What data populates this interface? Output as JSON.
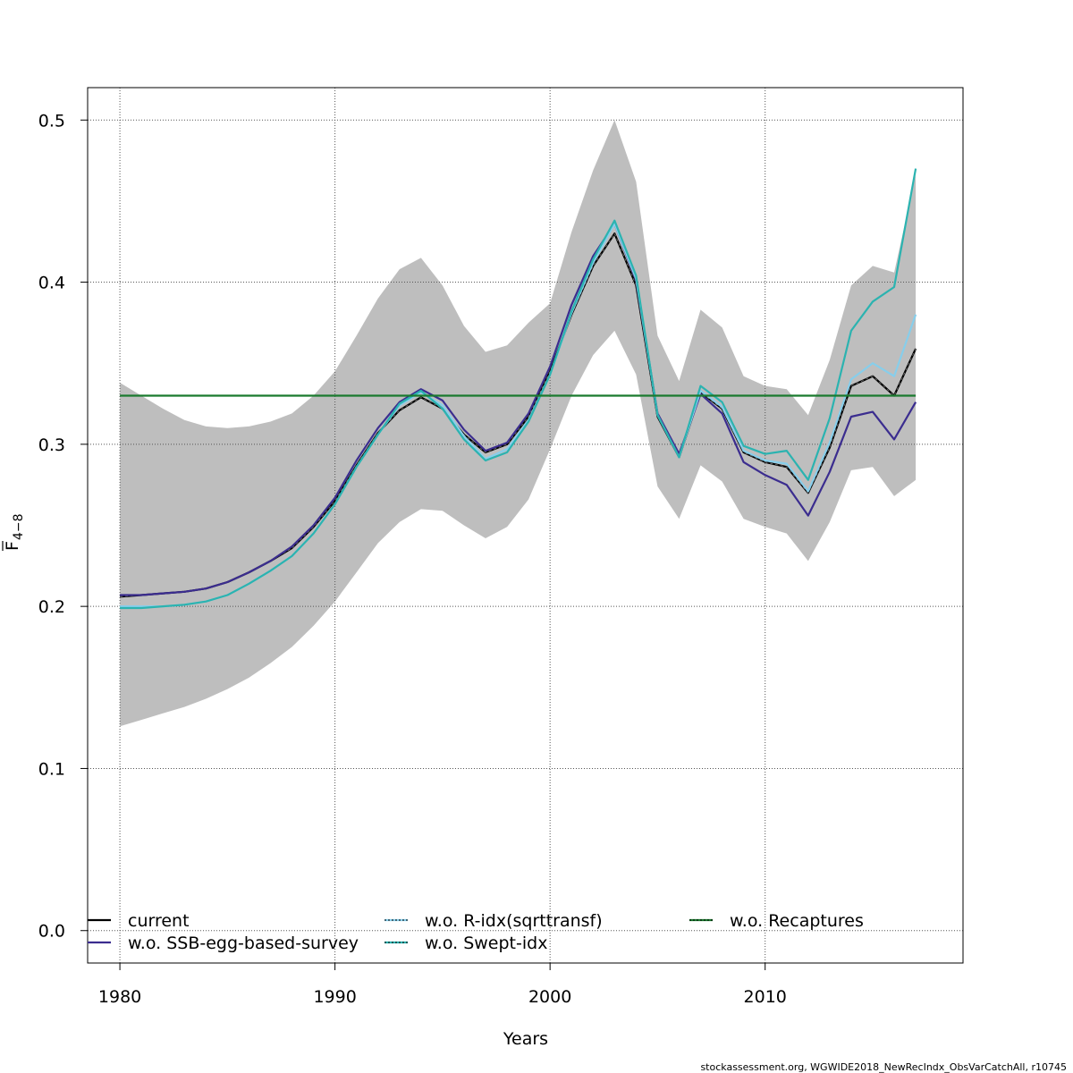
{
  "chart_data": {
    "type": "line",
    "xlabel": "Years",
    "ylabel": "F",
    "ylabel_sub": "4−8",
    "xlim": [
      1978.5,
      2019.2
    ],
    "ylim": [
      -0.02,
      0.52
    ],
    "x_ticks": [
      1980,
      1990,
      2000,
      2010
    ],
    "y_ticks": [
      0.0,
      0.1,
      0.2,
      0.3,
      0.4,
      0.5
    ],
    "y_tick_labels": [
      "0.0",
      "0.1",
      "0.2",
      "0.3",
      "0.4",
      "0.5"
    ],
    "grid": true,
    "legend_position": "bottom",
    "x": [
      1980,
      1981,
      1982,
      1983,
      1984,
      1985,
      1986,
      1987,
      1988,
      1989,
      1990,
      1991,
      1992,
      1993,
      1994,
      1995,
      1996,
      1997,
      1998,
      1999,
      2000,
      2001,
      2002,
      2003,
      2004,
      2005,
      2006,
      2007,
      2008,
      2009,
      2010,
      2011,
      2012,
      2013,
      2014,
      2015,
      2016,
      2017
    ],
    "band": {
      "upper": [
        0.338,
        0.33,
        0.322,
        0.315,
        0.311,
        0.31,
        0.311,
        0.314,
        0.319,
        0.33,
        0.345,
        0.367,
        0.39,
        0.408,
        0.415,
        0.398,
        0.373,
        0.357,
        0.361,
        0.375,
        0.387,
        0.431,
        0.469,
        0.5,
        0.462,
        0.367,
        0.339,
        0.383,
        0.372,
        0.342,
        0.336,
        0.334,
        0.318,
        0.352,
        0.398,
        0.41,
        0.406,
        0.466
      ],
      "lower": [
        0.126,
        0.13,
        0.134,
        0.138,
        0.143,
        0.149,
        0.156,
        0.165,
        0.175,
        0.188,
        0.203,
        0.221,
        0.239,
        0.252,
        0.26,
        0.259,
        0.25,
        0.242,
        0.249,
        0.266,
        0.297,
        0.33,
        0.355,
        0.37,
        0.343,
        0.274,
        0.254,
        0.287,
        0.277,
        0.254,
        0.249,
        0.245,
        0.228,
        0.252,
        0.284,
        0.286,
        0.268,
        0.278
      ],
      "color": "#bebebe"
    },
    "series": [
      {
        "name": "current",
        "color": "#000000",
        "dashed": false,
        "values": [
          0.206,
          0.207,
          0.208,
          0.209,
          0.211,
          0.215,
          0.221,
          0.228,
          0.236,
          0.249,
          0.265,
          0.287,
          0.307,
          0.321,
          0.329,
          0.322,
          0.306,
          0.295,
          0.3,
          0.317,
          0.345,
          0.38,
          0.41,
          0.43,
          0.398,
          0.317,
          0.292,
          0.332,
          0.322,
          0.295,
          0.289,
          0.286,
          0.27,
          0.298,
          0.336,
          0.342,
          0.33,
          0.359
        ]
      },
      {
        "name": "w.o. SSB-egg-based-survey",
        "color": "#3b2d8f",
        "dashed": false,
        "values": [
          0.207,
          0.207,
          0.208,
          0.209,
          0.211,
          0.215,
          0.221,
          0.228,
          0.237,
          0.25,
          0.267,
          0.29,
          0.31,
          0.326,
          0.334,
          0.327,
          0.309,
          0.296,
          0.301,
          0.319,
          0.348,
          0.386,
          0.416,
          0.436,
          0.401,
          0.319,
          0.294,
          0.331,
          0.319,
          0.289,
          0.281,
          0.275,
          0.256,
          0.283,
          0.317,
          0.32,
          0.303,
          0.326
        ]
      },
      {
        "name": "w.o. R-idx(sqrttransf)",
        "color": "#87ceeb",
        "dashed": true,
        "values": [
          0.2,
          0.2,
          0.2,
          0.201,
          0.203,
          0.207,
          0.214,
          0.222,
          0.231,
          0.245,
          0.263,
          0.286,
          0.306,
          0.324,
          0.332,
          0.324,
          0.305,
          0.291,
          0.297,
          0.315,
          0.343,
          0.381,
          0.412,
          0.436,
          0.402,
          0.318,
          0.292,
          0.333,
          0.323,
          0.296,
          0.29,
          0.288,
          0.271,
          0.301,
          0.34,
          0.35,
          0.342,
          0.38
        ]
      },
      {
        "name": "w.o. Swept-idx",
        "color": "#2bb3b0",
        "dashed": true,
        "values": [
          0.199,
          0.199,
          0.2,
          0.201,
          0.203,
          0.207,
          0.214,
          0.222,
          0.231,
          0.245,
          0.263,
          0.286,
          0.306,
          0.325,
          0.333,
          0.322,
          0.303,
          0.29,
          0.295,
          0.314,
          0.343,
          0.382,
          0.414,
          0.438,
          0.404,
          0.318,
          0.292,
          0.336,
          0.326,
          0.299,
          0.294,
          0.296,
          0.278,
          0.316,
          0.37,
          0.388,
          0.397,
          0.47
        ]
      },
      {
        "name": "w.o. Recaptures",
        "color": "#1a7a2e",
        "dashed": true,
        "values": [
          0.33,
          0.33,
          0.33,
          0.33,
          0.33,
          0.33,
          0.33,
          0.33,
          0.33,
          0.33,
          0.33,
          0.33,
          0.33,
          0.33,
          0.33,
          0.33,
          0.33,
          0.33,
          0.33,
          0.33,
          0.33,
          0.33,
          0.33,
          0.33,
          0.33,
          0.33,
          0.33,
          0.33,
          0.33,
          0.33,
          0.33,
          0.33,
          0.33,
          0.33,
          0.33,
          0.33,
          0.33,
          0.33
        ]
      }
    ]
  },
  "footer": "stockassessment.org, WGWIDE2018_NewRecIndx_ObsVarCatchAll, r10745",
  "colors": {
    "background": "#ffffff",
    "grid": "#555555",
    "band": "#bebebe"
  }
}
